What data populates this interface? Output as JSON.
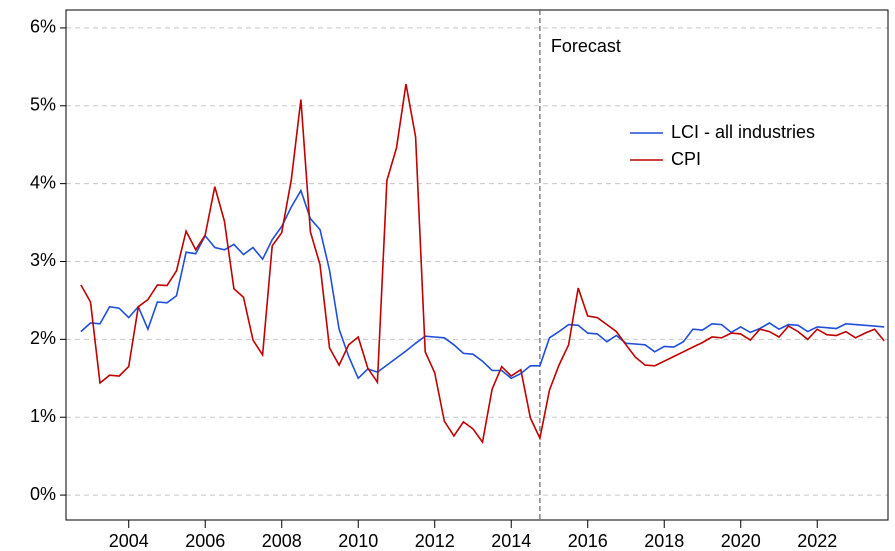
{
  "chart_data": {
    "type": "line",
    "x": [
      2002.75,
      2003,
      2003.25,
      2003.5,
      2003.75,
      2004,
      2004.25,
      2004.5,
      2004.75,
      2005,
      2005.25,
      2005.5,
      2005.75,
      2006,
      2006.25,
      2006.5,
      2006.75,
      2007,
      2007.25,
      2007.5,
      2007.75,
      2008,
      2008.25,
      2008.5,
      2008.75,
      2009,
      2009.25,
      2009.5,
      2009.75,
      2010,
      2010.25,
      2010.5,
      2010.75,
      2011,
      2011.25,
      2011.5,
      2011.75,
      2012,
      2012.25,
      2012.5,
      2012.75,
      2013,
      2013.25,
      2013.5,
      2013.75,
      2014,
      2014.25,
      2014.5,
      2014.75,
      2015,
      2015.25,
      2015.5,
      2015.75,
      2016,
      2016.25,
      2016.5,
      2016.75,
      2017,
      2017.25,
      2017.5,
      2017.75,
      2018,
      2018.25,
      2018.5,
      2018.75,
      2019,
      2019.25,
      2019.5,
      2019.75,
      2020,
      2020.25,
      2020.5,
      2020.75,
      2021,
      2021.25,
      2021.5,
      2021.75,
      2022,
      2022.25,
      2022.5,
      2022.75,
      2023,
      2023.25,
      2023.5,
      2023.75
    ],
    "series": [
      {
        "name": "LCI - all industries",
        "color": "#1f4fd8",
        "values": [
          2.1,
          2.21,
          2.2,
          2.42,
          2.4,
          2.28,
          2.42,
          2.13,
          2.48,
          2.47,
          2.56,
          3.12,
          3.1,
          3.33,
          3.18,
          3.15,
          3.22,
          3.09,
          3.18,
          3.03,
          3.28,
          3.45,
          3.7,
          3.91,
          3.55,
          3.41,
          2.89,
          2.13,
          1.78,
          1.5,
          1.62,
          1.58,
          1.67,
          1.76,
          1.85,
          1.95,
          2.04,
          2.03,
          2.02,
          1.93,
          1.82,
          1.81,
          1.72,
          1.6,
          1.6,
          1.5,
          1.56,
          1.66,
          1.66,
          2.02,
          2.1,
          2.19,
          2.18,
          2.08,
          2.07,
          1.97,
          2.05,
          1.95,
          1.94,
          1.93,
          1.84,
          1.91,
          1.9,
          1.97,
          2.13,
          2.12,
          2.2,
          2.19,
          2.09,
          2.16,
          2.09,
          2.14,
          2.21,
          2.13,
          2.19,
          2.18,
          2.1,
          2.16,
          2.15,
          2.14,
          2.2,
          2.19,
          2.18,
          2.17,
          2.16
        ]
      },
      {
        "name": "CPI",
        "color": "#c00000",
        "values": [
          2.7,
          2.48,
          1.44,
          1.54,
          1.53,
          1.65,
          2.42,
          2.51,
          2.7,
          2.69,
          2.88,
          3.39,
          3.15,
          3.34,
          3.96,
          3.52,
          2.65,
          2.54,
          1.99,
          1.8,
          3.2,
          3.37,
          4.05,
          5.08,
          3.38,
          2.96,
          1.89,
          1.67,
          1.93,
          2.03,
          1.63,
          1.45,
          4.04,
          4.46,
          5.28,
          4.6,
          1.84,
          1.57,
          0.95,
          0.76,
          0.94,
          0.85,
          0.68,
          1.36,
          1.65,
          1.53,
          1.61,
          0.99,
          0.73,
          1.35,
          1.67,
          1.93,
          2.66,
          2.3,
          2.28,
          2.19,
          2.1,
          1.93,
          1.77,
          1.67,
          1.66,
          1.72,
          1.78,
          1.84,
          1.9,
          1.96,
          2.03,
          2.02,
          2.08,
          2.07,
          1.99,
          2.13,
          2.1,
          2.03,
          2.17,
          2.1,
          2.0,
          2.13,
          2.06,
          2.05,
          2.1,
          2.02,
          2.08,
          2.13,
          1.98
        ]
      }
    ],
    "xlim": [
      2002.36,
      2023.85
    ],
    "xticks": [
      2004,
      2006,
      2008,
      2010,
      2012,
      2014,
      2016,
      2018,
      2020,
      2022
    ],
    "ylim": [
      -0.32,
      6.23
    ],
    "yticks": [
      {
        "value": 0,
        "label": "0%"
      },
      {
        "value": 1,
        "label": "1%"
      },
      {
        "value": 2,
        "label": "2%"
      },
      {
        "value": 3,
        "label": "3%"
      },
      {
        "value": 4,
        "label": "4%"
      },
      {
        "value": 5,
        "label": "5%"
      },
      {
        "value": 6,
        "label": "6%"
      }
    ],
    "grid": true,
    "legend": "upper right",
    "annotation": {
      "text": "Forecast",
      "x": 2014.75
    }
  }
}
